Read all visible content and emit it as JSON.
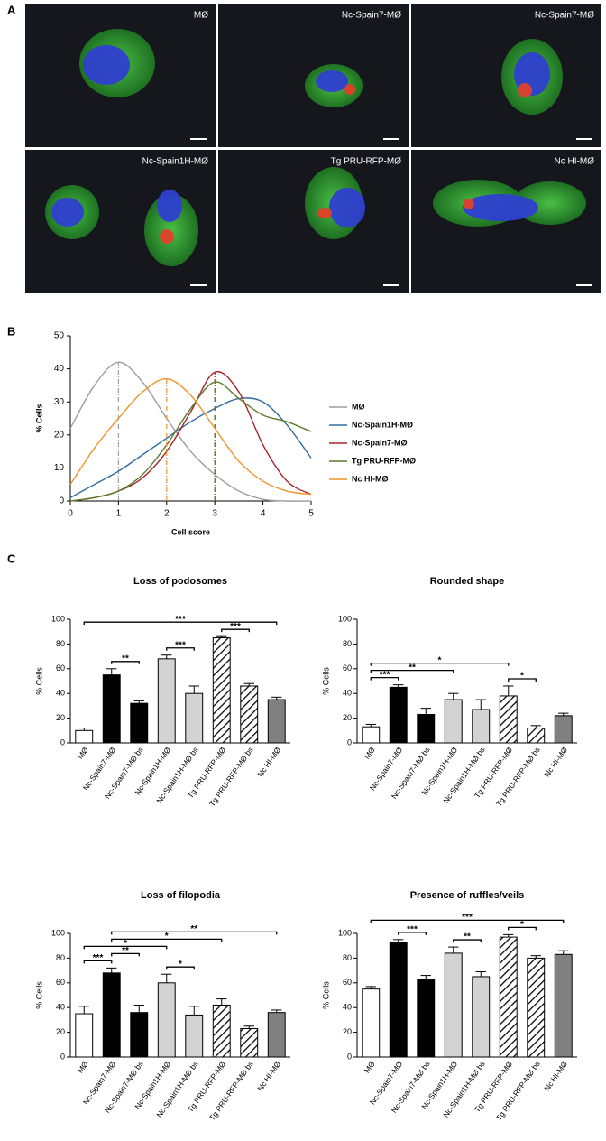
{
  "panel_labels": [
    "A",
    "B",
    "C"
  ],
  "micrographs": [
    "MØ",
    "Nc-Spain7-MØ",
    "Nc-Spain7-MØ",
    "Nc-Spain1H-MØ",
    "Tg PRU-RFP-MØ",
    "Nc HI-MØ"
  ],
  "chart_data": [
    {
      "type": "line",
      "xlabel": "Cell score",
      "ylabel": "% Cells",
      "x": [
        0,
        0.5,
        1,
        1.5,
        2,
        2.5,
        3,
        3.5,
        4,
        4.5,
        5
      ],
      "xlim": [
        0,
        5
      ],
      "xticks": [
        0,
        1,
        2,
        3,
        4,
        5
      ],
      "ylim": [
        0,
        50
      ],
      "yticks": [
        0,
        10,
        20,
        30,
        40,
        50
      ],
      "series": [
        {
          "name": "MØ",
          "color": "#9e9e9e",
          "mode": 1,
          "values": [
            22,
            35,
            42,
            36,
            25,
            15,
            8,
            3,
            0.5,
            0,
            0
          ]
        },
        {
          "name": "Nc-Spain1H-MØ",
          "color": "#2e6da4",
          "values": [
            1,
            5,
            9,
            14,
            19,
            24,
            28,
            31,
            30,
            23,
            13
          ]
        },
        {
          "name": "Nc-Spain7-MØ",
          "color": "#a8232b",
          "mode": 3,
          "values": [
            0,
            1,
            3,
            7,
            15,
            27,
            39,
            33,
            17,
            6,
            2
          ]
        },
        {
          "name": "Tg PRU-RFP-MØ",
          "color": "#5e7a2a",
          "mode": 3,
          "values": [
            0,
            1,
            3,
            8,
            17,
            28,
            36,
            31,
            26,
            24,
            21
          ]
        },
        {
          "name": "Nc HI-MØ",
          "color": "#f0932b",
          "mode": 2,
          "values": [
            5,
            16,
            25,
            33,
            37,
            32,
            22,
            12,
            6,
            3,
            2
          ]
        }
      ]
    },
    {
      "type": "bar",
      "title": "Loss of podosomes",
      "ylabel": "% Cells",
      "categories": [
        "MØ",
        "Nc-Spain7-MØ",
        "Nc-Spain7-MØ bs",
        "Nc-Spain1H-MØ",
        "Nc-Spain1H-MØ bs",
        "Tg PRU-RFP-MØ",
        "Tg PRU-RFP-MØ bs",
        "Nc HI-MØ"
      ],
      "colors": [
        "#ffffff",
        "#000000",
        "#000000",
        "#d3d3d3",
        "#d3d3d3",
        "#ffffff",
        "#ffffff",
        "#808080"
      ],
      "hatch": [
        false,
        false,
        false,
        false,
        false,
        true,
        true,
        false
      ],
      "values": [
        10,
        55,
        32,
        68,
        40,
        85,
        46,
        35
      ],
      "errors": [
        2,
        5,
        2,
        3,
        6,
        1,
        2,
        2
      ],
      "ylim": [
        0,
        100
      ],
      "yticks": [
        0,
        20,
        40,
        60,
        80,
        100
      ],
      "brackets": [
        {
          "from": 1,
          "to": 2,
          "label": "**"
        },
        {
          "from": 3,
          "to": 4,
          "label": "***"
        },
        {
          "from": 5,
          "to": 6,
          "label": "***"
        },
        {
          "from": 0,
          "to": 7,
          "label": "***"
        }
      ]
    },
    {
      "type": "bar",
      "title": "Rounded shape",
      "ylabel": "% Cells",
      "categories": [
        "MØ",
        "Nc-Spain7-MØ",
        "Nc-Spain7-MØ bs",
        "Nc-Spain1H-MØ",
        "Nc-Spain1H-MØ bs",
        "Tg PRU-RFP-MØ",
        "Tg PRU-RFP-MØ bs",
        "Nc HI-MØ"
      ],
      "colors": [
        "#ffffff",
        "#000000",
        "#000000",
        "#d3d3d3",
        "#d3d3d3",
        "#ffffff",
        "#ffffff",
        "#808080"
      ],
      "hatch": [
        false,
        false,
        false,
        false,
        false,
        true,
        true,
        false
      ],
      "values": [
        13,
        45,
        23,
        35,
        27,
        38,
        12,
        22
      ],
      "errors": [
        2,
        2,
        5,
        5,
        8,
        8,
        2,
        2
      ],
      "ylim": [
        0,
        100
      ],
      "yticks": [
        0,
        20,
        40,
        60,
        80,
        100
      ],
      "brackets": [
        {
          "from": 0,
          "to": 1,
          "label": "***"
        },
        {
          "from": 0,
          "to": 3,
          "label": "**"
        },
        {
          "from": 0,
          "to": 5,
          "label": "*"
        },
        {
          "from": 5,
          "to": 6,
          "label": "*"
        }
      ]
    },
    {
      "type": "bar",
      "title": "Loss of filopodia",
      "ylabel": "% Cells",
      "categories": [
        "MØ",
        "Nc-Spain7-MØ",
        "Nc-Spain7-MØ bs",
        "Nc-Spain1H-MØ",
        "Nc-Spain1H-MØ bs",
        "Tg PRU-RFP-MØ",
        "Tg PRU-RFP-MØ bs",
        "Nc HI-MØ"
      ],
      "colors": [
        "#ffffff",
        "#000000",
        "#000000",
        "#d3d3d3",
        "#d3d3d3",
        "#ffffff",
        "#ffffff",
        "#808080"
      ],
      "hatch": [
        false,
        false,
        false,
        false,
        false,
        true,
        true,
        false
      ],
      "values": [
        35,
        68,
        36,
        60,
        34,
        42,
        23,
        36
      ],
      "errors": [
        6,
        4,
        6,
        7,
        7,
        5,
        2,
        2
      ],
      "ylim": [
        0,
        100
      ],
      "yticks": [
        0,
        20,
        40,
        60,
        80,
        100
      ],
      "brackets": [
        {
          "from": 0,
          "to": 1,
          "label": "***"
        },
        {
          "from": 1,
          "to": 2,
          "label": "**"
        },
        {
          "from": 0,
          "to": 3,
          "label": "*"
        },
        {
          "from": 3,
          "to": 4,
          "label": "*"
        },
        {
          "from": 1,
          "to": 5,
          "label": "*"
        },
        {
          "from": 1,
          "to": 7,
          "label": "**"
        }
      ]
    },
    {
      "type": "bar",
      "title": "Presence of ruffles/veils",
      "ylabel": "% Cells",
      "categories": [
        "MØ",
        "Nc-Spain7-MØ",
        "Nc-Spain7-MØ bs",
        "Nc-Spain1H-MØ",
        "Nc-Spain1H-MØ bs",
        "Tg PRU-RFP-MØ",
        "Tg PRU-RFP-MØ bs",
        "Nc HI-MØ"
      ],
      "colors": [
        "#ffffff",
        "#000000",
        "#000000",
        "#d3d3d3",
        "#d3d3d3",
        "#ffffff",
        "#ffffff",
        "#808080"
      ],
      "hatch": [
        false,
        false,
        false,
        false,
        false,
        true,
        true,
        false
      ],
      "values": [
        55,
        93,
        63,
        84,
        65,
        97,
        80,
        83
      ],
      "errors": [
        2,
        2,
        3,
        5,
        4,
        2,
        2,
        3
      ],
      "ylim": [
        0,
        100
      ],
      "yticks": [
        0,
        20,
        40,
        60,
        80,
        100
      ],
      "brackets": [
        {
          "from": 1,
          "to": 2,
          "label": "***"
        },
        {
          "from": 3,
          "to": 4,
          "label": "**"
        },
        {
          "from": 5,
          "to": 6,
          "label": "*"
        },
        {
          "from": 0,
          "to": 7,
          "label": "***"
        }
      ]
    }
  ]
}
